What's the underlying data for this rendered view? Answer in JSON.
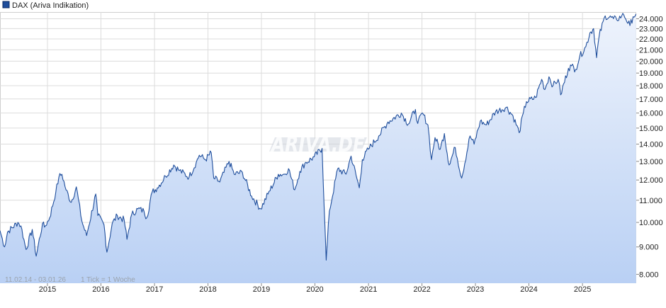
{
  "chart_data": {
    "type": "area",
    "legend": {
      "label": "DAX (Ariva Indikation)",
      "placement": "top-left"
    },
    "watermark": "ARIVA.DE",
    "footnote": {
      "range": "11.02.14 - 03.01.26",
      "tick_info": "1 Tick = 1 Woche"
    },
    "x_tick_labels": [
      "2015",
      "2016",
      "2017",
      "2018",
      "2019",
      "2020",
      "2021",
      "2022",
      "2023",
      "2024",
      "2025"
    ],
    "y_tick_labels": [
      "8.000",
      "9.000",
      "10.000",
      "11.000",
      "12.000",
      "13.000",
      "14.000",
      "15.000",
      "16.000",
      "17.000",
      "18.000",
      "19.000",
      "20.000",
      "21.000",
      "22.000",
      "23.000",
      "24.000"
    ],
    "y_scale": "log",
    "ylim": [
      7700,
      24700
    ],
    "xlim": [
      "2014-02-11",
      "2026-01-03"
    ],
    "grid": true,
    "colors": {
      "line": "#1f4e9c",
      "fill_top": "#eef3fc",
      "fill_bottom": "#b9d0f4",
      "grid": "#dcdcdc"
    },
    "series": [
      {
        "x": [
          "2014-02-11",
          "2014-03-14",
          "2014-04-04",
          "2014-06-13",
          "2014-07-04",
          "2014-08-08",
          "2014-09-19",
          "2014-10-16",
          "2014-11-28",
          "2014-12-12",
          "2015-01-16",
          "2015-02-27",
          "2015-03-20",
          "2015-04-10",
          "2015-05-08",
          "2015-06-12",
          "2015-07-17",
          "2015-08-24",
          "2015-09-25",
          "2015-11-27",
          "2015-12-11",
          "2016-01-22",
          "2016-02-11",
          "2016-03-18",
          "2016-04-22",
          "2016-06-08",
          "2016-06-27",
          "2016-07-29",
          "2016-09-09",
          "2016-10-21",
          "2016-11-09",
          "2016-12-16",
          "2017-01-20",
          "2017-03-17",
          "2017-05-12",
          "2017-06-20",
          "2017-08-25",
          "2017-10-13",
          "2017-11-03",
          "2017-12-15",
          "2018-01-23",
          "2018-02-09",
          "2018-03-23",
          "2018-05-25",
          "2018-06-29",
          "2018-08-24",
          "2018-10-26",
          "2018-12-27",
          "2019-02-15",
          "2019-04-26",
          "2019-06-07",
          "2019-07-05",
          "2019-08-16",
          "2019-09-20",
          "2019-10-25",
          "2019-12-27",
          "2020-02-19",
          "2020-03-18",
          "2020-04-09",
          "2020-06-05",
          "2020-07-31",
          "2020-09-04",
          "2020-10-30",
          "2020-11-20",
          "2020-12-31",
          "2021-03-12",
          "2021-05-14",
          "2021-08-13",
          "2021-09-30",
          "2021-11-17",
          "2021-12-03",
          "2022-01-05",
          "2022-02-11",
          "2022-03-07",
          "2022-03-31",
          "2022-05-06",
          "2022-06-03",
          "2022-07-05",
          "2022-08-16",
          "2022-09-29",
          "2022-11-25",
          "2022-12-23",
          "2023-02-03",
          "2023-03-17",
          "2023-05-19",
          "2023-07-31",
          "2023-09-15",
          "2023-10-27",
          "2023-11-24",
          "2023-12-15",
          "2024-02-16",
          "2024-03-28",
          "2024-04-19",
          "2024-05-17",
          "2024-06-14",
          "2024-07-19",
          "2024-08-05",
          "2024-09-27",
          "2024-10-18",
          "2024-11-15",
          "2024-12-13",
          "2025-01-24",
          "2025-02-21",
          "2025-03-18",
          "2025-04-07",
          "2025-04-25",
          "2025-06-05",
          "2025-07-31",
          "2025-08-22",
          "2025-09-26",
          "2025-10-10",
          "2025-11-21",
          "2025-12-12",
          "2026-01-02"
        ],
        "y": [
          9650,
          9000,
          9600,
          10000,
          9850,
          8900,
          9700,
          8650,
          9950,
          9800,
          10200,
          11400,
          12150,
          12300,
          11500,
          10900,
          11650,
          10050,
          9450,
          11300,
          10300,
          9900,
          8800,
          9950,
          10300,
          10100,
          9300,
          10340,
          10600,
          10500,
          10200,
          11400,
          11600,
          12200,
          12800,
          12500,
          12150,
          12950,
          13350,
          13100,
          13500,
          12100,
          11900,
          13000,
          12300,
          12400,
          11200,
          10600,
          11300,
          12300,
          12300,
          12600,
          11500,
          12450,
          12900,
          13250,
          13750,
          8500,
          10500,
          12600,
          12300,
          13300,
          11600,
          13100,
          13700,
          14500,
          15400,
          16000,
          15260,
          16250,
          15300,
          16000,
          15200,
          13100,
          14400,
          13700,
          14650,
          12800,
          13800,
          12100,
          14500,
          14000,
          15450,
          15200,
          16100,
          16400,
          15800,
          14700,
          16000,
          16800,
          17100,
          18500,
          17700,
          18700,
          18000,
          18500,
          17300,
          19400,
          19600,
          19300,
          20400,
          21300,
          22600,
          23000,
          20300,
          22300,
          24300,
          24000,
          23900,
          24300,
          24400,
          23300,
          24200,
          24500
        ]
      }
    ]
  }
}
